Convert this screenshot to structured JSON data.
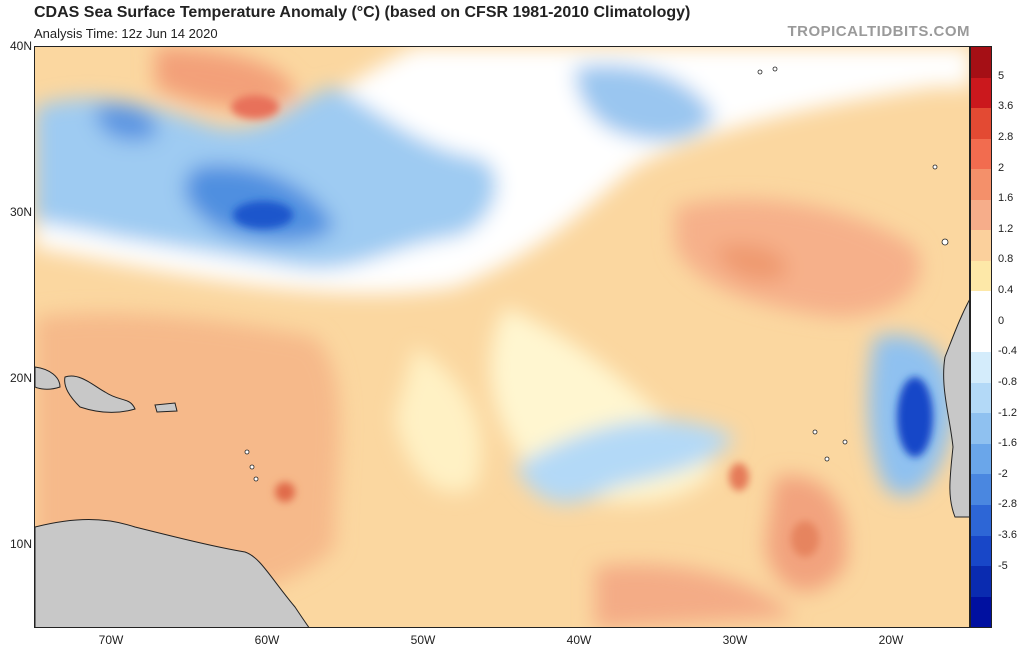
{
  "header": {
    "title": "CDAS Sea Surface Temperature Anomaly (°C) (based on CFSR 1981-2010 Climatology)",
    "subtitle": "Analysis Time: 12z Jun 14 2020",
    "brand": "TROPICALTIDBITS.COM"
  },
  "map": {
    "lat_labels": [
      "40N",
      "30N",
      "20N",
      "10N"
    ],
    "lon_labels": [
      "70W",
      "60W",
      "50W",
      "40W",
      "30W",
      "20W"
    ],
    "land_color": "#c8c8c8",
    "ocean_neutral_color": "#ffffff"
  },
  "colorbar": {
    "labels": [
      "5",
      "3.6",
      "2.8",
      "2",
      "1.6",
      "1.2",
      "0.8",
      "0.4",
      "0",
      "-0.4",
      "-0.8",
      "-1.2",
      "-1.6",
      "-2",
      "-2.8",
      "-3.6",
      "-5"
    ],
    "colors": [
      "#a50f15",
      "#cb181d",
      "#e34a33",
      "#f26c4f",
      "#f4906a",
      "#f6ad8a",
      "#fbd09c",
      "#fde8a8",
      "#ffffff",
      "#ffffff",
      "#d4ecfb",
      "#b3d9f7",
      "#8fc1f0",
      "#6aa6ea",
      "#4a87e0",
      "#2d66d6",
      "#1847c8",
      "#0a2bb0",
      "#0010a0"
    ]
  }
}
